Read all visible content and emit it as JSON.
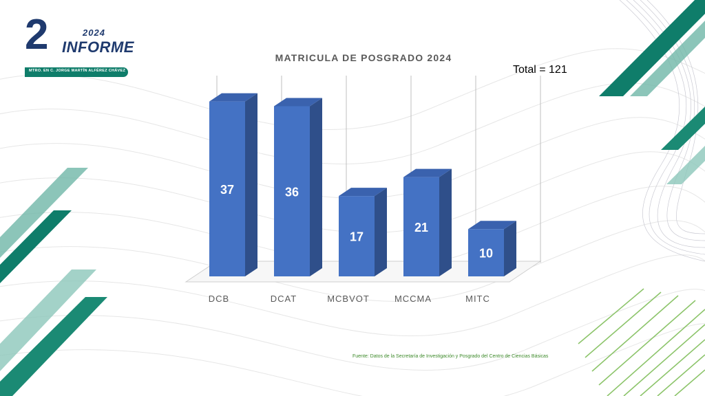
{
  "header": {
    "logo_number": "2",
    "logo_year": "2024",
    "logo_word": "INFORME",
    "logo_subtitle": "MTRO. EN C. JORGE MARTÍN ALFÉREZ CHÁVEZ"
  },
  "total_label": "Total = 121",
  "source_note": "Fuente: Datos de la Secretaría de Investigación y Posgrado del Centro de Ciencias Básicas",
  "colors": {
    "bar_front": "#4472c4",
    "bar_side": "#2f4f8a",
    "bar_top": "#3a62ae",
    "accent_green": "#0f7d6a",
    "logo_navy": "#1f3a6e"
  },
  "chart_data": {
    "type": "bar",
    "style": "3d-column",
    "title": "MATRICULA DE POSGRADO 2024",
    "categories": [
      "DCB",
      "DCAT",
      "MCBVOT",
      "MCCMA",
      "MITC"
    ],
    "values": [
      37,
      36,
      17,
      21,
      10
    ],
    "data_labels": [
      "37",
      "36",
      "17",
      "21",
      "10"
    ],
    "xlabel": "",
    "ylabel": "",
    "ylim": [
      0,
      40
    ],
    "grid": "vertical",
    "legend": "none"
  }
}
